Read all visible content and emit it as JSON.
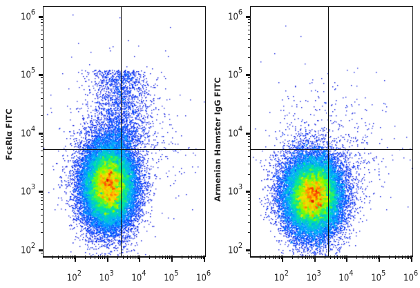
{
  "chart_data": [
    {
      "type": "scatter",
      "subtype": "flow-cytometry-pseudocolor-density",
      "title": "",
      "xlabel": "",
      "ylabel": "FcεRIα FITC",
      "x_scale": "log",
      "y_scale": "log",
      "xlim": [
        10,
        1000000
      ],
      "ylim": [
        80,
        1500000
      ],
      "x_ticks": [
        "10^2",
        "10^3",
        "10^4",
        "10^5",
        "10^6"
      ],
      "y_ticks": [
        "10^2",
        "10^3",
        "10^4",
        "10^5",
        "10^6"
      ],
      "quadrant_gate": {
        "x": 2500,
        "y": 5500
      },
      "population_peak": {
        "x": 1000,
        "y": 1500
      },
      "notes": "Main population centered ~10^3 x ~1.5x10^3; distinct FcεRIα+ tail extending to ~10^5 on y near gate x (upper-left/upper-right)",
      "colormap": [
        "#0000cc",
        "#0066ff",
        "#00ccff",
        "#00ff66",
        "#ccff00",
        "#ffcc00",
        "#ff3300"
      ]
    },
    {
      "type": "scatter",
      "subtype": "flow-cytometry-pseudocolor-density",
      "title": "",
      "xlabel": "",
      "ylabel": "Armenian Hamster IgG FITC",
      "x_scale": "log",
      "y_scale": "log",
      "xlim": [
        10,
        1000000
      ],
      "ylim": [
        80,
        1500000
      ],
      "x_ticks": [
        "10^2",
        "10^3",
        "10^4",
        "10^5",
        "10^6"
      ],
      "y_ticks": [
        "10^2",
        "10^3",
        "10^4",
        "10^5",
        "10^6"
      ],
      "quadrant_gate": {
        "x": 2500,
        "y": 5500
      },
      "population_peak": {
        "x": 800,
        "y": 1000
      },
      "notes": "Isotype control: single population centered ~8x10^2 x ~10^3, sparse events above gate",
      "colormap": [
        "#0000cc",
        "#0066ff",
        "#00ccff",
        "#00ff66",
        "#ccff00",
        "#ffcc00",
        "#ff3300"
      ]
    }
  ],
  "panels": [
    {
      "ylabel": "FcεRIα FITC"
    },
    {
      "ylabel": "Armenian Hamster IgG FITC"
    }
  ],
  "axis": {
    "base": "10",
    "exponents": [
      "2",
      "3",
      "4",
      "5",
      "6"
    ]
  }
}
